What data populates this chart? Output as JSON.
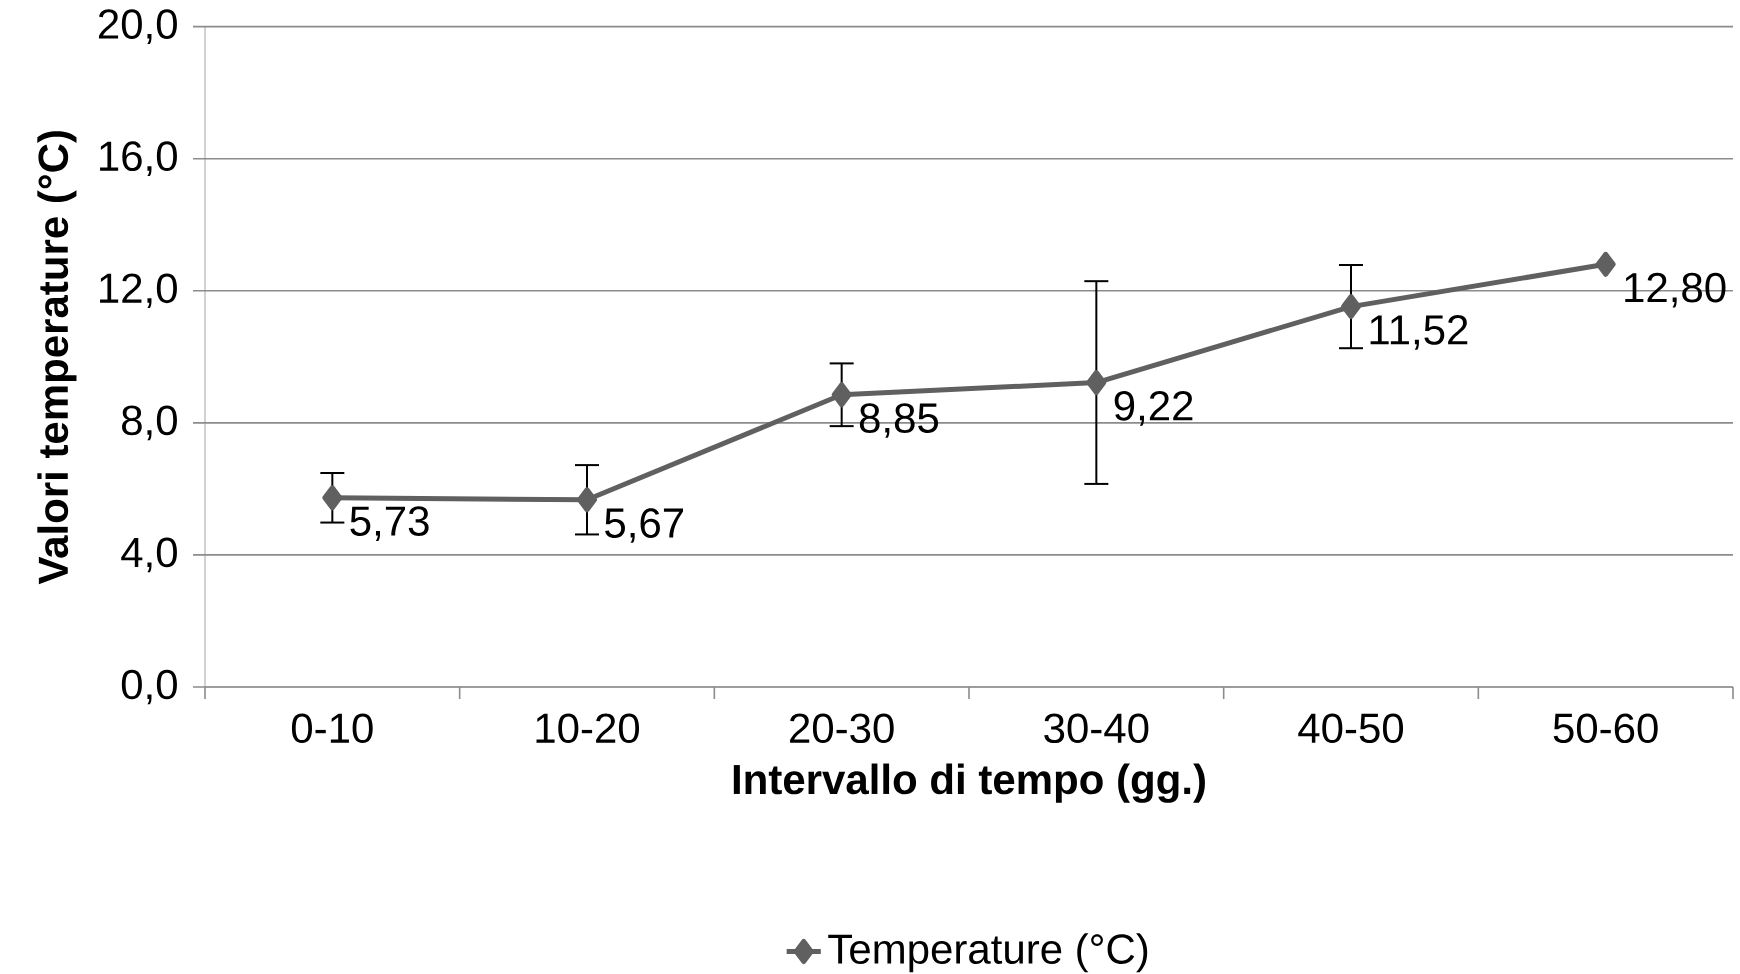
{
  "chart_data": {
    "type": "line",
    "xlabel": "Intervallo di tempo (gg.)",
    "ylabel": "Valori temperature (°C)",
    "categories": [
      "0-10",
      "10-20",
      "20-30",
      "30-40",
      "40-50",
      "50-60"
    ],
    "series": [
      {
        "name": "Temperature (°C)",
        "color": "#606060",
        "values": [
          5.73,
          5.67,
          8.85,
          9.22,
          11.52,
          12.8
        ],
        "errors": [
          0.75,
          1.05,
          0.95,
          3.07,
          1.26,
          null
        ],
        "value_labels": [
          "5,73",
          "5,67",
          "8,85",
          "9,22",
          "11,52",
          "12,80"
        ]
      }
    ],
    "ylim": [
      0,
      20
    ],
    "yticks": [
      {
        "value": 0,
        "label": "0,0"
      },
      {
        "value": 4,
        "label": "4,0"
      },
      {
        "value": 8,
        "label": "8,0"
      },
      {
        "value": 12,
        "label": "12,0"
      },
      {
        "value": 16,
        "label": "16,0"
      },
      {
        "value": 20,
        "label": "20,0"
      }
    ],
    "grid": "y",
    "legend": "bottom",
    "marker": "diamond",
    "line_style": "solid"
  }
}
